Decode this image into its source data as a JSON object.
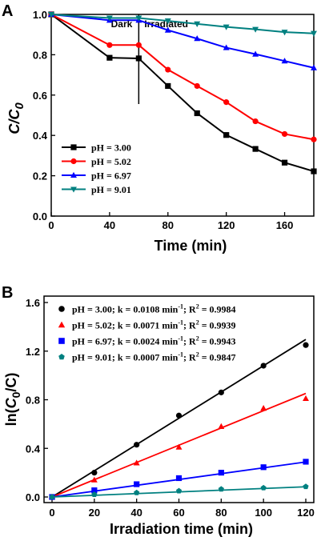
{
  "chart_data": [
    {
      "panel": "A",
      "type": "line",
      "xlabel": "Time (min)",
      "ylabel_main": "C/C",
      "ylabel_sub": "0",
      "xlim": [
        0,
        180
      ],
      "ylim": [
        0,
        1.0
      ],
      "xticks": [
        0,
        40,
        80,
        120,
        160
      ],
      "yticks": [
        0.0,
        0.2,
        0.4,
        0.6,
        0.8,
        1.0
      ],
      "annotations": {
        "dark": "Dark",
        "irradiated": "Irradiated",
        "divider_x": 60
      },
      "legend_position": "bottom-left",
      "x": [
        0,
        40,
        60,
        80,
        100,
        120,
        140,
        160,
        180
      ],
      "series": [
        {
          "name": "pH = 3.00",
          "color": "#000000",
          "marker": "square",
          "values": [
            1.0,
            0.785,
            0.782,
            0.645,
            0.51,
            0.402,
            0.333,
            0.265,
            0.222
          ]
        },
        {
          "name": "pH = 5.02",
          "color": "#ff0000",
          "marker": "circle",
          "values": [
            1.0,
            0.848,
            0.848,
            0.726,
            0.645,
            0.565,
            0.47,
            0.407,
            0.38
          ]
        },
        {
          "name": "pH = 6.97",
          "color": "#0000ff",
          "marker": "triangle-up",
          "values": [
            1.0,
            0.971,
            0.971,
            0.922,
            0.88,
            0.835,
            0.803,
            0.769,
            0.735
          ]
        },
        {
          "name": "pH = 9.01",
          "color": "#008080",
          "marker": "triangle-down",
          "values": [
            1.0,
            0.982,
            0.982,
            0.968,
            0.953,
            0.938,
            0.926,
            0.912,
            0.906
          ]
        }
      ]
    },
    {
      "panel": "B",
      "type": "scatter",
      "xlabel": "Irradiation time (min)",
      "ylabel_pre": "ln(",
      "ylabel_c": "C",
      "ylabel_sub": "0",
      "ylabel_post": "/C)",
      "xlim": [
        0,
        120
      ],
      "ylim": [
        0,
        1.6
      ],
      "xticks": [
        0,
        20,
        40,
        60,
        80,
        100,
        120
      ],
      "yticks": [
        0.0,
        0.4,
        0.8,
        1.2,
        1.6
      ],
      "legend_position": "top-left",
      "x": [
        0,
        20,
        40,
        60,
        80,
        100,
        120
      ],
      "series": [
        {
          "name": "pH = 3.00; k = 0.0108 min",
          "sup": "-1",
          "r2": "; R",
          "r2sup": "2",
          "r2val": " = 0.9984",
          "color": "#000000",
          "marker": "circle",
          "slope": 0.0108,
          "values": [
            0.0,
            0.2,
            0.43,
            0.67,
            0.86,
            1.08,
            1.25
          ]
        },
        {
          "name": "pH = 5.02; k = 0.0071 min",
          "sup": "-1",
          "r2": "; R",
          "r2sup": "2",
          "r2val": " = 0.9939",
          "color": "#ff0000",
          "marker": "triangle-up",
          "slope": 0.0071,
          "values": [
            0.0,
            0.14,
            0.28,
            0.41,
            0.58,
            0.73,
            0.81
          ]
        },
        {
          "name": "pH = 6.97; k = 0.0024 min",
          "sup": "-1",
          "r2": "; R",
          "r2sup": "2",
          "r2val": " = 0.9943",
          "color": "#0000ff",
          "marker": "square",
          "slope": 0.0024,
          "values": [
            0.0,
            0.055,
            0.105,
            0.155,
            0.2,
            0.245,
            0.29
          ]
        },
        {
          "name": "pH = 9.01; k = 0.0007 min",
          "sup": "-1",
          "r2": "; R",
          "r2sup": "2",
          "r2val": " = 0.9847",
          "color": "#008080",
          "marker": "pentagon",
          "slope": 0.0007,
          "values": [
            0.0,
            0.02,
            0.035,
            0.05,
            0.065,
            0.075,
            0.085
          ]
        }
      ]
    }
  ]
}
